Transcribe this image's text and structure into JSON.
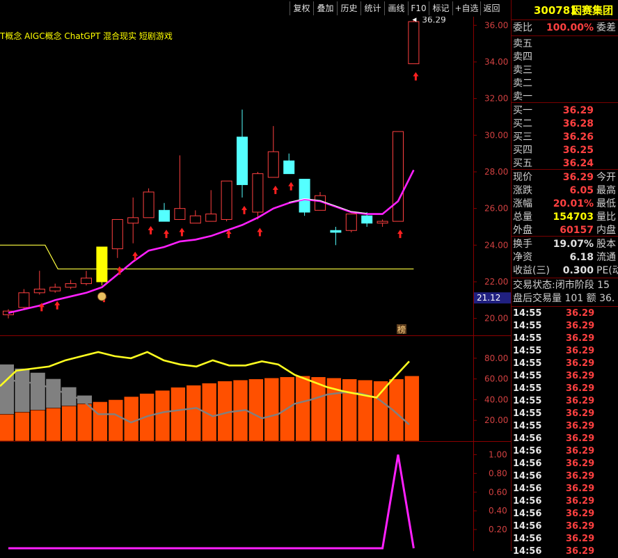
{
  "toolbar": {
    "buttons": [
      "复权",
      "叠加",
      "历史",
      "统计",
      "画线",
      "F10",
      "标记",
      "+自选",
      "返回"
    ]
  },
  "quote": {
    "code": "300781",
    "name": "因赛集团",
    "webi_label": "委比",
    "webi_value": "100.00%",
    "wecha_label": "委差",
    "asks": [
      {
        "label": "卖五",
        "price": ""
      },
      {
        "label": "卖四",
        "price": ""
      },
      {
        "label": "卖三",
        "price": ""
      },
      {
        "label": "卖二",
        "price": ""
      },
      {
        "label": "卖一",
        "price": ""
      }
    ],
    "bids": [
      {
        "label": "买一",
        "price": "36.29"
      },
      {
        "label": "买二",
        "price": "36.28"
      },
      {
        "label": "买三",
        "price": "36.26"
      },
      {
        "label": "买四",
        "price": "36.25"
      },
      {
        "label": "买五",
        "price": "36.24"
      }
    ],
    "stats": [
      {
        "label": "现价",
        "value": "36.29",
        "extra": "今开",
        "color": "#ff4040"
      },
      {
        "label": "涨跌",
        "value": "6.05",
        "extra": "最高",
        "color": "#ff4040"
      },
      {
        "label": "涨幅",
        "value": "20.01%",
        "extra": "最低",
        "color": "#ff4040"
      },
      {
        "label": "总量",
        "value": "154703",
        "extra": "量比",
        "color": "#ffff00"
      },
      {
        "label": "外盘",
        "value": "60157",
        "extra": "内盘",
        "color": "#ff4040"
      }
    ],
    "stats2": [
      {
        "label": "换手",
        "value": "19.07%",
        "extra": "股本"
      },
      {
        "label": "净资",
        "value": "6.18",
        "extra": "流通"
      },
      {
        "label": "收益(三)",
        "value": "0.300",
        "extra": "PE(动"
      }
    ],
    "trade_status": "交易状态:闭市阶段 15",
    "after_hours": "盘后交易量 101 额 36.",
    "ticks": [
      {
        "time": "14:55",
        "price": "36.29"
      },
      {
        "time": "14:55",
        "price": "36.29"
      },
      {
        "time": "14:55",
        "price": "36.29"
      },
      {
        "time": "14:55",
        "price": "36.29"
      },
      {
        "time": "14:55",
        "price": "36.29"
      },
      {
        "time": "14:55",
        "price": "36.29"
      },
      {
        "time": "14:55",
        "price": "36.29"
      },
      {
        "time": "14:55",
        "price": "36.29"
      },
      {
        "time": "14:55",
        "price": "36.29"
      },
      {
        "time": "14:55",
        "price": "36.29"
      },
      {
        "time": "14:56",
        "price": "36.29"
      },
      {
        "time": "14:56",
        "price": "36.29"
      },
      {
        "time": "14:56",
        "price": "36.29"
      },
      {
        "time": "14:56",
        "price": "36.29"
      },
      {
        "time": "14:56",
        "price": "36.29"
      },
      {
        "time": "14:56",
        "price": "36.29"
      },
      {
        "time": "14:56",
        "price": "36.29"
      },
      {
        "time": "14:56",
        "price": "36.29"
      },
      {
        "time": "14:56",
        "price": "36.29"
      },
      {
        "time": "14:56",
        "price": "36.29"
      }
    ]
  },
  "chart_data": {
    "type": "candlestick",
    "concept_tags": "T概念 AIGC概念 ChatGPT 混合现实 短剧游戏",
    "last_price_label": "36.29",
    "crosshair_price_label": "21.12",
    "marker_label": "榜",
    "price_axis": {
      "ticks": [
        "20.00",
        "22.00",
        "24.00",
        "26.00",
        "28.00",
        "30.00",
        "32.00",
        "34.00",
        "36.00"
      ],
      "ylim": [
        19.0,
        37.0
      ]
    },
    "candles": [
      {
        "o": 20.2,
        "c": 20.4,
        "h": 20.5,
        "l": 20.0
      },
      {
        "o": 20.6,
        "c": 21.4,
        "h": 21.6,
        "l": 20.5
      },
      {
        "o": 21.4,
        "c": 21.6,
        "h": 22.6,
        "l": 21.3
      },
      {
        "o": 21.5,
        "c": 21.7,
        "h": 21.9,
        "l": 21.4
      },
      {
        "o": 21.7,
        "c": 21.9,
        "h": 22.1,
        "l": 21.6
      },
      {
        "o": 21.9,
        "c": 22.2,
        "h": 22.6,
        "l": 21.8
      },
      {
        "o": 23.9,
        "c": 22.0,
        "h": 23.9,
        "l": 21.8
      },
      {
        "o": 23.8,
        "c": 25.4,
        "h": 25.4,
        "l": 23.3
      },
      {
        "o": 25.2,
        "c": 25.5,
        "h": 26.6,
        "l": 24.1
      },
      {
        "o": 25.5,
        "c": 26.9,
        "h": 27.1,
        "l": 25.5
      },
      {
        "o": 25.9,
        "c": 25.3,
        "h": 26.3,
        "l": 25.3
      },
      {
        "o": 25.4,
        "c": 26.0,
        "h": 28.9,
        "l": 25.4
      },
      {
        "o": 25.2,
        "c": 25.6,
        "h": 25.9,
        "l": 25.2
      },
      {
        "o": 25.3,
        "c": 25.7,
        "h": 27.0,
        "l": 25.3
      },
      {
        "o": 25.4,
        "c": 27.5,
        "h": 27.5,
        "l": 25.3
      },
      {
        "o": 29.9,
        "c": 27.3,
        "h": 31.4,
        "l": 26.6
      },
      {
        "o": 25.8,
        "c": 27.9,
        "h": 28.0,
        "l": 25.4
      },
      {
        "o": 27.7,
        "c": 29.1,
        "h": 30.5,
        "l": 27.7
      },
      {
        "o": 28.6,
        "c": 27.9,
        "h": 29.0,
        "l": 27.9
      },
      {
        "o": 27.6,
        "c": 25.8,
        "h": 27.6,
        "l": 25.6
      },
      {
        "o": 25.9,
        "c": 26.7,
        "h": 26.9,
        "l": 25.9
      },
      {
        "o": 24.8,
        "c": 24.7,
        "h": 25.0,
        "l": 24.0
      },
      {
        "o": 24.8,
        "c": 25.7,
        "h": 25.7,
        "l": 24.7
      },
      {
        "o": 25.6,
        "c": 25.2,
        "h": 25.8,
        "l": 25.0
      },
      {
        "o": 25.2,
        "c": 25.3,
        "h": 25.4,
        "l": 25.0
      },
      {
        "o": 25.3,
        "c": 30.2,
        "h": 30.2,
        "l": 25.3
      },
      {
        "o": 33.9,
        "c": 36.2,
        "h": 36.3,
        "l": 33.9
      }
    ],
    "ma": [
      20.3,
      20.5,
      20.7,
      21.0,
      21.2,
      21.4,
      21.7,
      22.4,
      23.1,
      23.7,
      23.9,
      24.2,
      24.3,
      24.5,
      24.8,
      25.1,
      25.5,
      26.0,
      26.3,
      26.5,
      26.4,
      26.1,
      25.8,
      25.7,
      25.7,
      26.4,
      28.1
    ],
    "support_line": [
      24.0,
      24.0,
      24.0,
      22.7,
      22.7,
      22.7,
      22.7,
      22.7,
      22.7,
      22.7,
      22.7,
      22.7,
      22.7,
      22.7,
      22.7,
      22.7,
      22.7,
      22.7,
      22.7,
      22.7,
      22.7,
      22.7,
      22.7,
      22.7,
      22.7,
      22.7,
      22.7
    ],
    "up_arrows": [
      2,
      3,
      6,
      7,
      8,
      9,
      10,
      11,
      14,
      15,
      16,
      17,
      18,
      25,
      26
    ],
    "indicator": {
      "axis_ticks": [
        "20.00",
        "40.00",
        "60.00",
        "80.00"
      ],
      "ylim": [
        0,
        100
      ],
      "bars": [
        26,
        28,
        30,
        32,
        34,
        36,
        38,
        40,
        43,
        46,
        49,
        52,
        54,
        56,
        58,
        59,
        60,
        61,
        62,
        63,
        62,
        61,
        60,
        59,
        58,
        60,
        63
      ],
      "grey_bars": [
        74,
        70,
        66,
        60,
        52,
        44,
        38,
        0,
        0,
        0,
        0,
        0,
        0,
        0,
        0,
        0,
        0,
        0,
        0,
        0,
        0,
        0,
        0,
        0,
        0,
        0,
        0
      ],
      "yellow": [
        53,
        68,
        70,
        72,
        78,
        82,
        86,
        82,
        80,
        86,
        78,
        74,
        72,
        78,
        73,
        73,
        77,
        74,
        64,
        58,
        52,
        48,
        45,
        42,
        60,
        77
      ],
      "grey_line": [
        60,
        58,
        56,
        52,
        46,
        40,
        26,
        26,
        18,
        24,
        28,
        30,
        32,
        24,
        28,
        30,
        22,
        26,
        36,
        40,
        45,
        47,
        46,
        42,
        30,
        16
      ]
    },
    "signal": {
      "axis_ticks": [
        "0.20",
        "0.40",
        "0.60",
        "0.80",
        "1.00"
      ],
      "ylim": [
        0,
        1.1
      ],
      "values": [
        0,
        0,
        0,
        0,
        0,
        0,
        0,
        0,
        0,
        0,
        0,
        0,
        0,
        0,
        0,
        0,
        0,
        0,
        0,
        0,
        0,
        0,
        0,
        0,
        0,
        1.0,
        0
      ]
    }
  }
}
